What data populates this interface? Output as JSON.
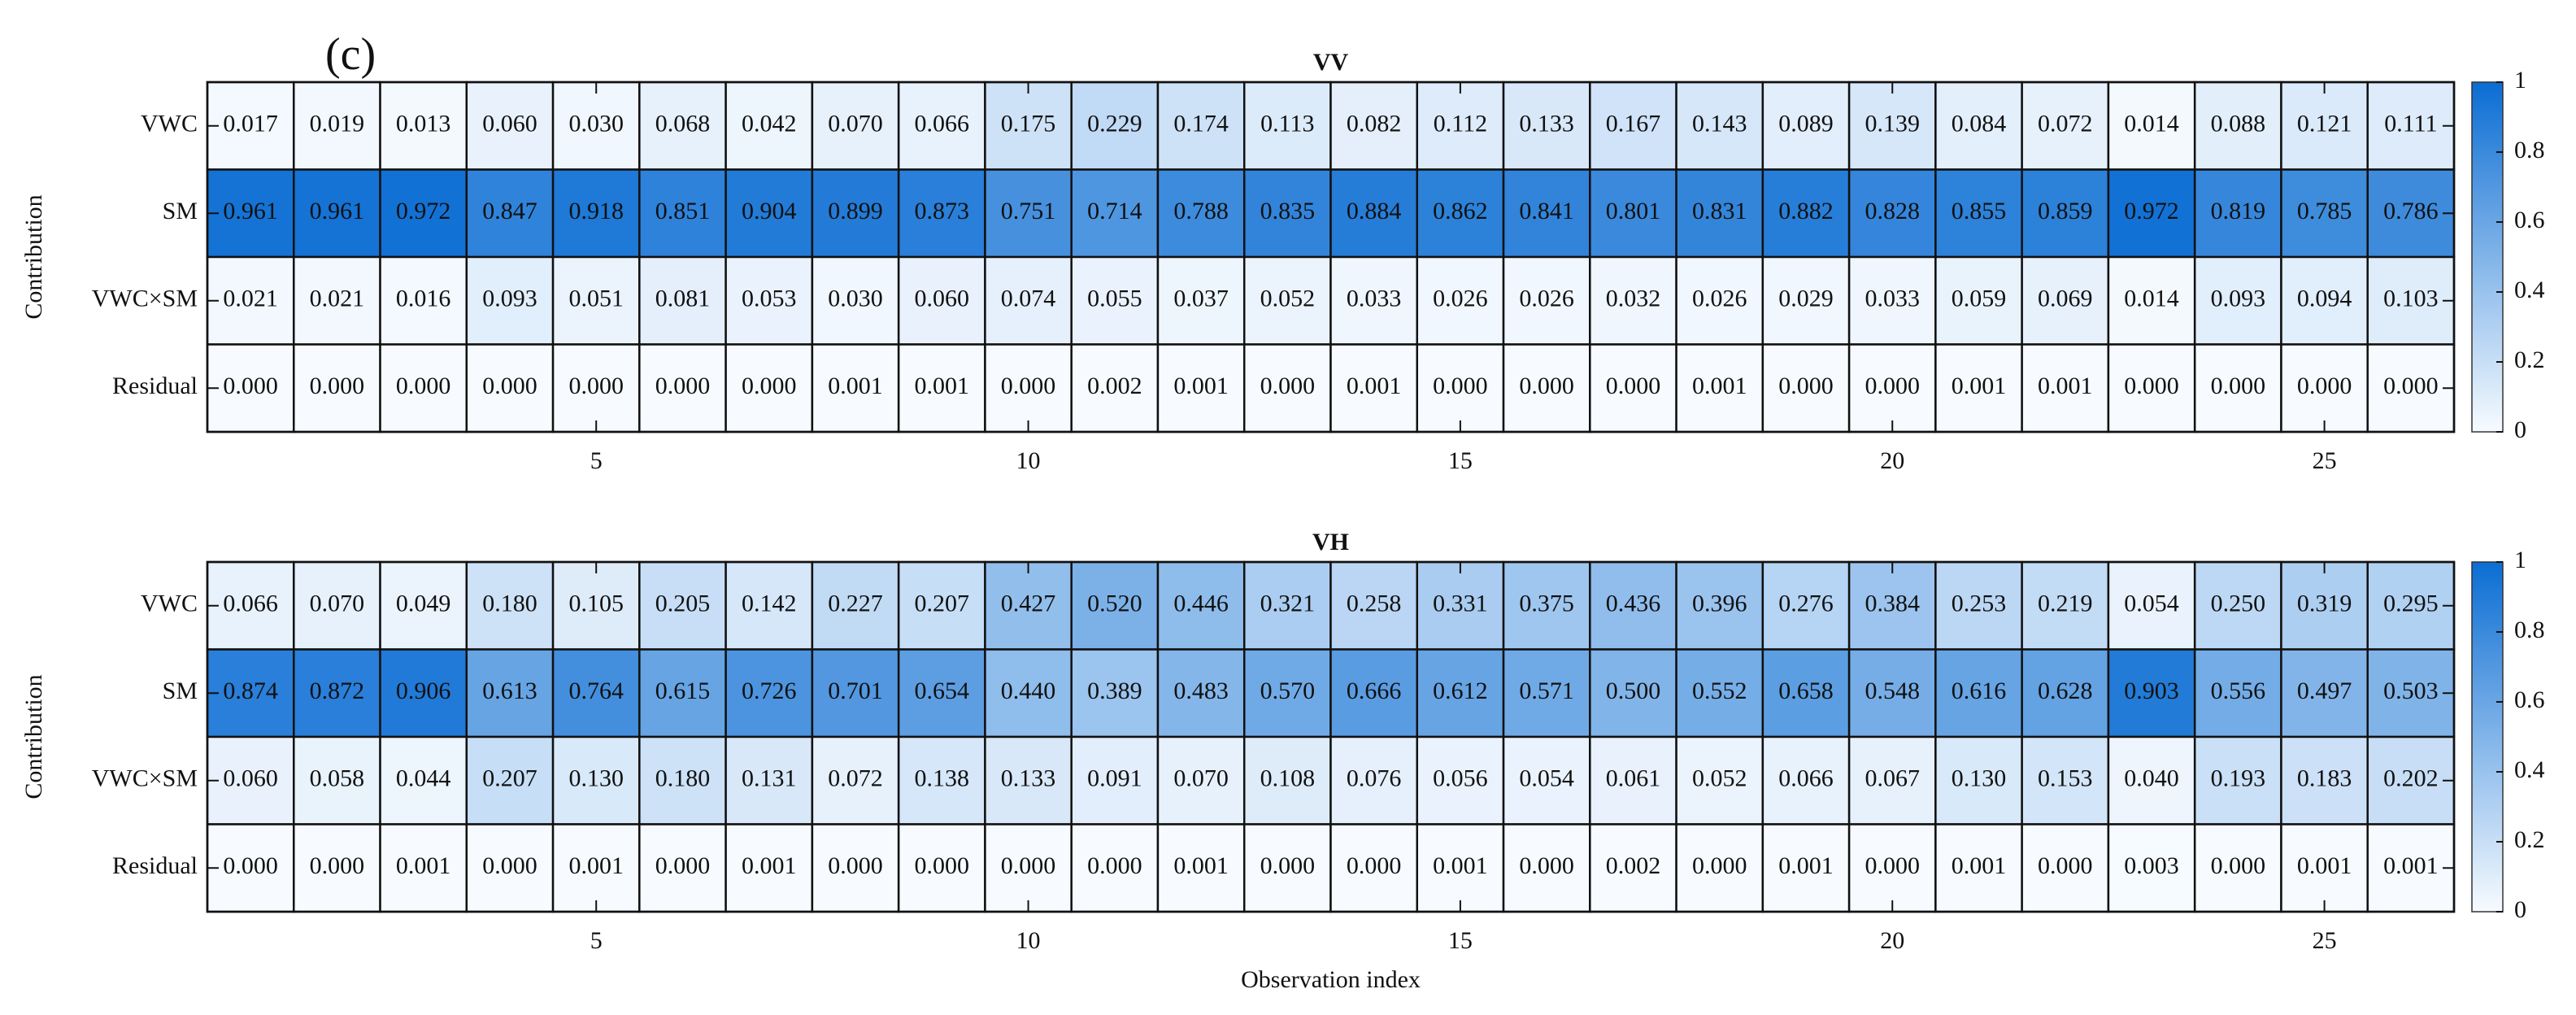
{
  "chart_data": [
    {
      "type": "heatmap",
      "panel_label": "(c)",
      "title": "VV",
      "ylabel": "Contribution",
      "x": [
        1,
        2,
        3,
        4,
        5,
        6,
        7,
        8,
        9,
        10,
        11,
        12,
        13,
        14,
        15,
        16,
        17,
        18,
        19,
        20,
        21,
        22,
        23,
        24,
        25,
        26
      ],
      "xlim": [
        0.5,
        26.5
      ],
      "xticks": [
        5,
        10,
        15,
        20,
        25
      ],
      "rows": [
        "VWC",
        "SM",
        "VWC×SM",
        "Residual"
      ],
      "values": [
        [
          0.017,
          0.019,
          0.013,
          0.06,
          0.03,
          0.068,
          0.042,
          0.07,
          0.066,
          0.175,
          0.229,
          0.174,
          0.113,
          0.082,
          0.112,
          0.133,
          0.167,
          0.143,
          0.089,
          0.139,
          0.084,
          0.072,
          0.014,
          0.088,
          0.121,
          0.111
        ],
        [
          0.961,
          0.961,
          0.972,
          0.847,
          0.918,
          0.851,
          0.904,
          0.899,
          0.873,
          0.751,
          0.714,
          0.788,
          0.835,
          0.884,
          0.862,
          0.841,
          0.801,
          0.831,
          0.882,
          0.828,
          0.855,
          0.859,
          0.972,
          0.819,
          0.785,
          0.786
        ],
        [
          0.021,
          0.021,
          0.016,
          0.093,
          0.051,
          0.081,
          0.053,
          0.03,
          0.06,
          0.074,
          0.055,
          0.037,
          0.052,
          0.033,
          0.026,
          0.026,
          0.032,
          0.026,
          0.029,
          0.033,
          0.059,
          0.069,
          0.014,
          0.093,
          0.094,
          0.103
        ],
        [
          0.0,
          0.0,
          0.0,
          0.0,
          0.0,
          0.0,
          0.0,
          0.001,
          0.001,
          0.0,
          0.002,
          0.001,
          0.0,
          0.001,
          0.0,
          0.0,
          0.0,
          0.001,
          0.0,
          0.0,
          0.001,
          0.001,
          0.0,
          0.0,
          0.0,
          0.0
        ]
      ],
      "value_labels": [
        [
          "0.017",
          "0.019",
          "0.013",
          "0.060",
          "0.030",
          "0.068",
          "0.042",
          "0.070",
          "0.066",
          "0.175",
          "0.229",
          "0.174",
          "0.113",
          "0.082",
          "0.112",
          "0.133",
          "0.167",
          "0.143",
          "0.089",
          "0.139",
          "0.084",
          "0.072",
          "0.014",
          "0.088",
          "0.121",
          "0.111"
        ],
        [
          "0.961",
          "0.961",
          "0.972",
          "0.847",
          "0.918",
          "0.851",
          "0.904",
          "0.899",
          "0.873",
          "0.751",
          "0.714",
          "0.788",
          "0.835",
          "0.884",
          "0.862",
          "0.841",
          "0.801",
          "0.831",
          "0.882",
          "0.828",
          "0.855",
          "0.859",
          "0.972",
          "0.819",
          "0.785",
          "0.786"
        ],
        [
          "0.021",
          "0.021",
          "0.016",
          "0.093",
          "0.051",
          "0.081",
          "0.053",
          "0.030",
          "0.060",
          "0.074",
          "0.055",
          "0.037",
          "0.052",
          "0.033",
          "0.026",
          "0.026",
          "0.032",
          "0.026",
          "0.029",
          "0.033",
          "0.059",
          "0.069",
          "0.014",
          "0.093",
          "0.094",
          "0.103"
        ],
        [
          "0.000",
          "0.000",
          "0.000",
          "0.000",
          "0.000",
          "0.000",
          "0.000",
          "0.001",
          "0.001",
          "0.000",
          "0.002",
          "0.001",
          "0.000",
          "0.001",
          "0.000",
          "0.000",
          "0.000",
          "0.001",
          "0.000",
          "0.000",
          "0.001",
          "0.001",
          "0.000",
          "0.000",
          "0.000",
          "0.000"
        ]
      ],
      "colormap": [
        "#f7fbff",
        "#0b6dd3"
      ],
      "colorbar_lim": [
        0,
        1
      ],
      "colorbar_ticks": [
        0,
        0.2,
        0.4,
        0.6,
        0.8,
        1
      ]
    },
    {
      "type": "heatmap",
      "title": "VH",
      "ylabel": "Contribution",
      "xlabel": "Observation index",
      "x": [
        1,
        2,
        3,
        4,
        5,
        6,
        7,
        8,
        9,
        10,
        11,
        12,
        13,
        14,
        15,
        16,
        17,
        18,
        19,
        20,
        21,
        22,
        23,
        24,
        25,
        26
      ],
      "xlim": [
        0.5,
        26.5
      ],
      "xticks": [
        5,
        10,
        15,
        20,
        25
      ],
      "rows": [
        "VWC",
        "SM",
        "VWC×SM",
        "Residual"
      ],
      "values": [
        [
          0.066,
          0.07,
          0.049,
          0.18,
          0.105,
          0.205,
          0.142,
          0.227,
          0.207,
          0.427,
          0.52,
          0.446,
          0.321,
          0.258,
          0.331,
          0.375,
          0.436,
          0.396,
          0.276,
          0.384,
          0.253,
          0.219,
          0.054,
          0.25,
          0.319,
          0.295
        ],
        [
          0.874,
          0.872,
          0.906,
          0.613,
          0.764,
          0.615,
          0.726,
          0.701,
          0.654,
          0.44,
          0.389,
          0.483,
          0.57,
          0.666,
          0.612,
          0.571,
          0.5,
          0.552,
          0.658,
          0.548,
          0.616,
          0.628,
          0.903,
          0.556,
          0.497,
          0.503
        ],
        [
          0.06,
          0.058,
          0.044,
          0.207,
          0.13,
          0.18,
          0.131,
          0.072,
          0.138,
          0.133,
          0.091,
          0.07,
          0.108,
          0.076,
          0.056,
          0.054,
          0.061,
          0.052,
          0.066,
          0.067,
          0.13,
          0.153,
          0.04,
          0.193,
          0.183,
          0.202
        ],
        [
          0.0,
          0.0,
          0.001,
          0.0,
          0.001,
          0.0,
          0.001,
          0.0,
          0.0,
          0.0,
          0.0,
          0.001,
          0.0,
          0.0,
          0.001,
          0.0,
          0.002,
          0.0,
          0.001,
          0.0,
          0.001,
          0.0,
          0.003,
          0.0,
          0.001,
          0.001
        ]
      ],
      "value_labels": [
        [
          "0.066",
          "0.070",
          "0.049",
          "0.180",
          "0.105",
          "0.205",
          "0.142",
          "0.227",
          "0.207",
          "0.427",
          "0.520",
          "0.446",
          "0.321",
          "0.258",
          "0.331",
          "0.375",
          "0.436",
          "0.396",
          "0.276",
          "0.384",
          "0.253",
          "0.219",
          "0.054",
          "0.250",
          "0.319",
          "0.295"
        ],
        [
          "0.874",
          "0.872",
          "0.906",
          "0.613",
          "0.764",
          "0.615",
          "0.726",
          "0.701",
          "0.654",
          "0.440",
          "0.389",
          "0.483",
          "0.570",
          "0.666",
          "0.612",
          "0.571",
          "0.500",
          "0.552",
          "0.658",
          "0.548",
          "0.616",
          "0.628",
          "0.903",
          "0.556",
          "0.497",
          "0.503"
        ],
        [
          "0.060",
          "0.058",
          "0.044",
          "0.207",
          "0.130",
          "0.180",
          "0.131",
          "0.072",
          "0.138",
          "0.133",
          "0.091",
          "0.070",
          "0.108",
          "0.076",
          "0.056",
          "0.054",
          "0.061",
          "0.052",
          "0.066",
          "0.067",
          "0.130",
          "0.153",
          "0.040",
          "0.193",
          "0.183",
          "0.202"
        ],
        [
          "0.000",
          "0.000",
          "0.001",
          "0.000",
          "0.001",
          "0.000",
          "0.001",
          "0.000",
          "0.000",
          "0.000",
          "0.000",
          "0.001",
          "0.000",
          "0.000",
          "0.001",
          "0.000",
          "0.002",
          "0.000",
          "0.001",
          "0.000",
          "0.001",
          "0.000",
          "0.003",
          "0.000",
          "0.001",
          "0.001"
        ]
      ],
      "colormap": [
        "#f7fbff",
        "#0b6dd3"
      ],
      "colorbar_lim": [
        0,
        1
      ],
      "colorbar_ticks": [
        0,
        0.2,
        0.4,
        0.6,
        0.8,
        1
      ]
    }
  ]
}
